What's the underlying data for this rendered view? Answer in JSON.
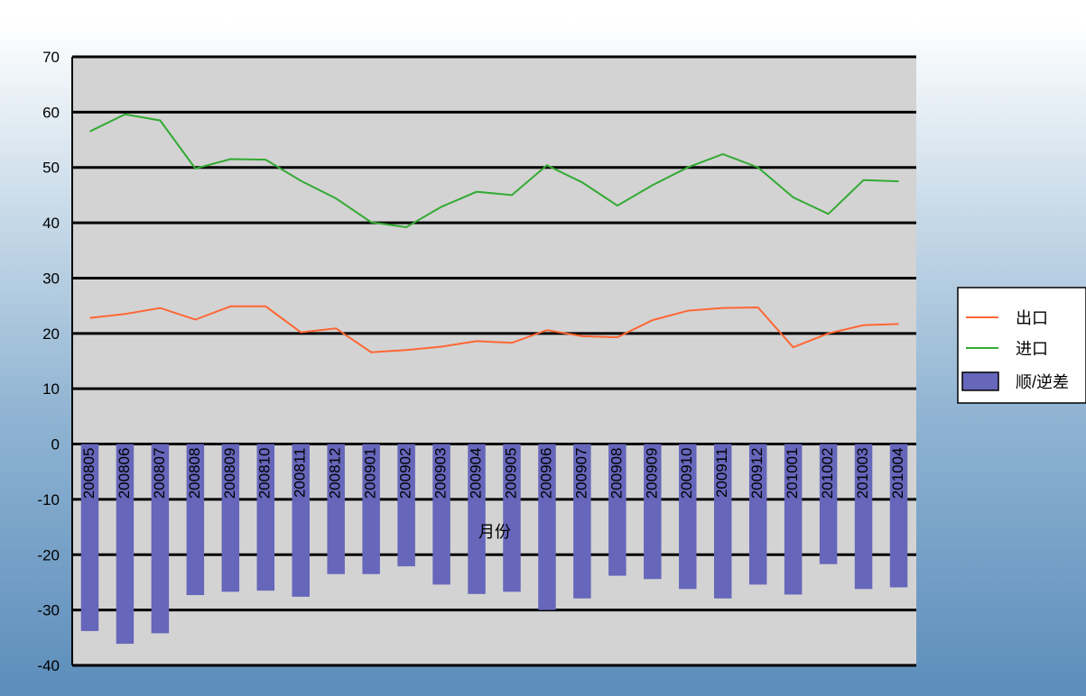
{
  "chart_data": {
    "type": "bar+line",
    "title": "",
    "xlabel": "月份",
    "ylabel": "",
    "ylim": [
      -40,
      70
    ],
    "yticks": [
      70,
      60,
      50,
      40,
      30,
      20,
      10,
      0,
      -10,
      -20,
      -30,
      -40
    ],
    "grid": true,
    "legend_position": "right",
    "categories": [
      "200805",
      "200806",
      "200807",
      "200808",
      "200809",
      "200810",
      "200811",
      "200812",
      "200901",
      "200902",
      "200903",
      "200904",
      "200905",
      "200906",
      "200907",
      "200908",
      "200909",
      "200910",
      "200911",
      "200912",
      "201001",
      "201002",
      "201003",
      "201004"
    ],
    "series": [
      {
        "name": "出口",
        "type": "line",
        "color": "#ff6633",
        "values": [
          22.8,
          23.5,
          24.6,
          22.5,
          24.9,
          24.9,
          20.2,
          20.9,
          16.6,
          17.0,
          17.6,
          18.6,
          18.3,
          20.6,
          19.5,
          19.3,
          22.4,
          24.1,
          24.6,
          24.7,
          17.5,
          20.0,
          21.5,
          21.7
        ]
      },
      {
        "name": "进口",
        "type": "line",
        "color": "#33aa33",
        "values": [
          56.5,
          59.6,
          58.5,
          49.8,
          51.5,
          51.4,
          47.6,
          44.4,
          40.1,
          39.2,
          42.9,
          45.6,
          45.0,
          50.4,
          47.3,
          43.1,
          46.8,
          50.0,
          52.4,
          50.0,
          44.6,
          41.6,
          47.7,
          47.5
        ]
      },
      {
        "name": "顺/逆差",
        "type": "bar",
        "color": "#6666bb",
        "values": [
          -33.8,
          -36.1,
          -34.2,
          -27.3,
          -26.7,
          -26.5,
          -27.6,
          -23.5,
          -23.5,
          -22.1,
          -25.4,
          -27.1,
          -26.7,
          -30.0,
          -27.9,
          -23.8,
          -24.4,
          -26.2,
          -27.9,
          -25.4,
          -27.2,
          -21.7,
          -26.2,
          -25.9
        ]
      }
    ]
  }
}
